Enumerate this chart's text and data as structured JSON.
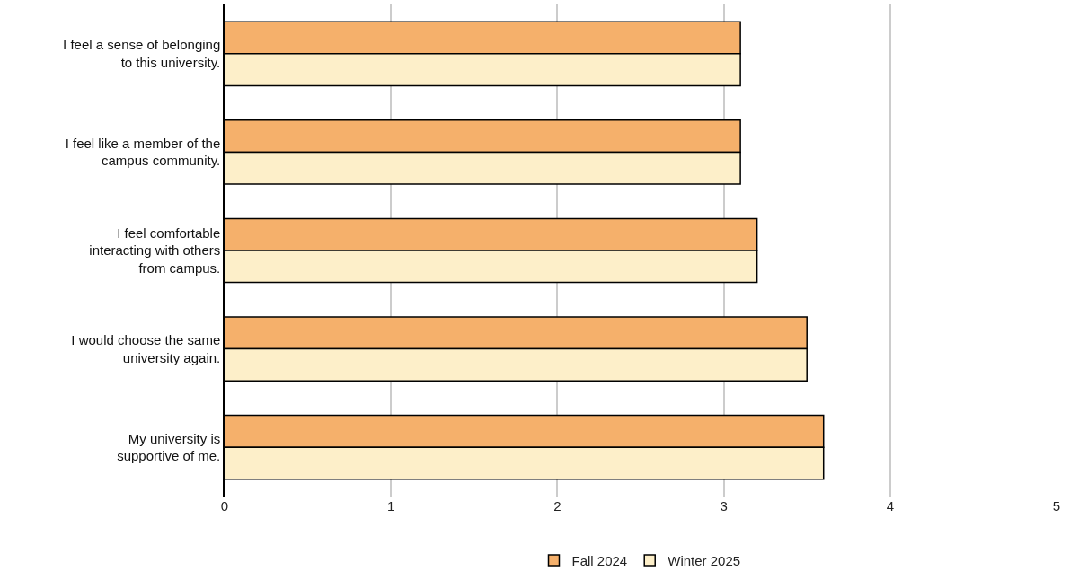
{
  "chart_data": {
    "type": "bar",
    "orientation": "horizontal",
    "categories": [
      "I feel a sense of belonging\nto this university.",
      "I feel like a member of the\ncampus community.",
      "I feel comfortable\ninteracting with others\nfrom campus.",
      "I would choose the same\nuniversity again.",
      "My university is\nsupportive of me."
    ],
    "series": [
      {
        "name": "Fall 2024",
        "color": "#f5b06b",
        "values": [
          3.1,
          3.1,
          3.2,
          3.5,
          3.6
        ]
      },
      {
        "name": "Winter 2025",
        "color": "#fdefc9",
        "values": [
          3.1,
          3.1,
          3.2,
          3.5,
          3.6
        ]
      }
    ],
    "xlim": [
      0,
      5
    ],
    "xticks": [
      0,
      1,
      2,
      3,
      4,
      5
    ],
    "grid": "x",
    "legend": "bottom"
  }
}
